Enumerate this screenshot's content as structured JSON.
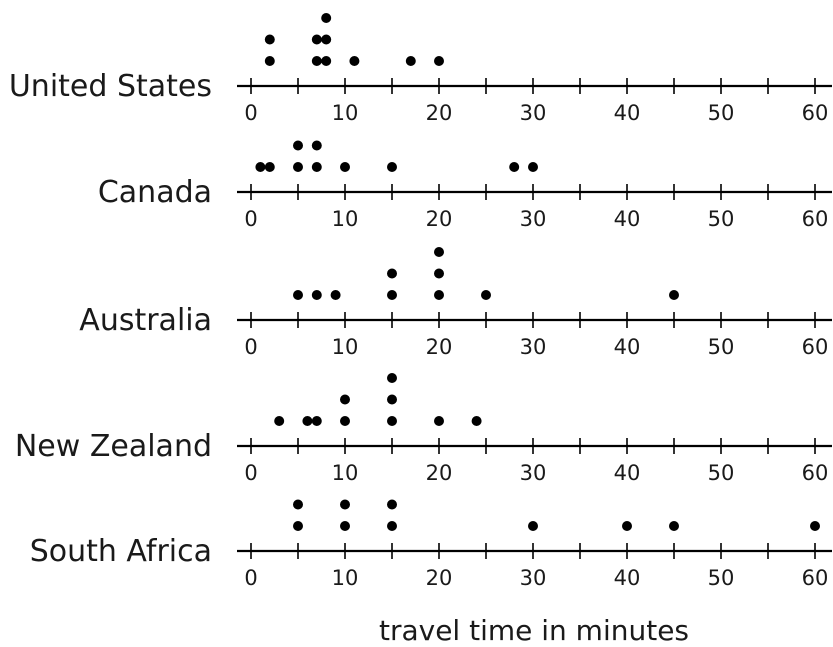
{
  "chart_data": {
    "type": "scatter",
    "subtype": "dot-plot",
    "xlabel": "travel time in minutes",
    "xlim": [
      0,
      60
    ],
    "xticks": [
      0,
      10,
      20,
      30,
      40,
      50,
      60
    ],
    "minor_tick_step": 5,
    "dot_color": "#000000",
    "axis_color": "#000000",
    "rows": [
      {
        "name": "United States",
        "values": [
          2,
          2,
          7,
          7,
          8,
          8,
          8,
          11,
          17,
          20
        ]
      },
      {
        "name": "Canada",
        "values": [
          1,
          2,
          5,
          5,
          7,
          7,
          10,
          15,
          28,
          30
        ]
      },
      {
        "name": "Australia",
        "values": [
          5,
          7,
          9,
          15,
          15,
          20,
          20,
          20,
          25,
          45
        ]
      },
      {
        "name": "New Zealand",
        "values": [
          3,
          6,
          7,
          10,
          10,
          15,
          15,
          15,
          20,
          24
        ]
      },
      {
        "name": "South Africa",
        "values": [
          5,
          5,
          10,
          10,
          15,
          15,
          30,
          40,
          45,
          60
        ]
      }
    ]
  }
}
